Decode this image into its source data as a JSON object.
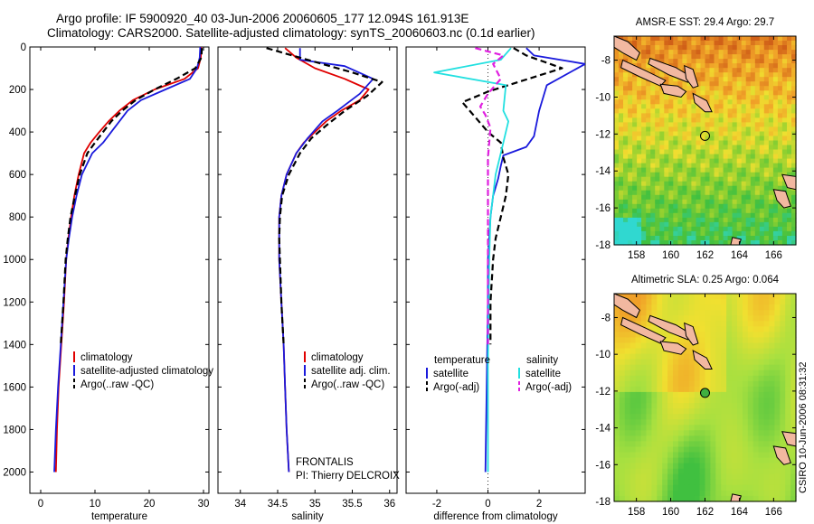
{
  "title": {
    "line1": "Argo profile: IF 5900920_40 03-Jun-2006 20060605_177 12.094S 161.913E",
    "line2": "Climatology: CARS2000. Satellite-adjusted climatology: synTS_20060603.nc (0.1d earlier)"
  },
  "side_text": "CSIRO 10-Jun-2006 08:31:32",
  "colors": {
    "red": "#e00000",
    "blue": "#1a1adc",
    "black": "#000000",
    "cyan": "#22e0e0",
    "magenta": "#e020e0"
  },
  "chart_data": [
    {
      "type": "line",
      "xlabel": "temperature",
      "ylabel": "",
      "xlim": [
        -2,
        31
      ],
      "ylim": [
        0,
        2100
      ],
      "y_reversed": true,
      "xticks": [
        0,
        10,
        20,
        30
      ],
      "yticks": [
        0,
        200,
        400,
        600,
        800,
        1000,
        1200,
        1400,
        1600,
        1800,
        2000
      ],
      "legend": [
        "climatology",
        "satellite-adjusted climatology",
        "Argo(..raw -QC)"
      ],
      "legend_position": "lower-left",
      "series": [
        {
          "name": "climatology",
          "color": "red",
          "dash": false,
          "points": [
            [
              29.6,
              0
            ],
            [
              29.5,
              50
            ],
            [
              29.0,
              100
            ],
            [
              26.5,
              150
            ],
            [
              21,
              200
            ],
            [
              17,
              250
            ],
            [
              14.5,
              300
            ],
            [
              12.5,
              350
            ],
            [
              10.8,
              400
            ],
            [
              9.2,
              450
            ],
            [
              8,
              500
            ],
            [
              7,
              600
            ],
            [
              6.2,
              700
            ],
            [
              5.6,
              800
            ],
            [
              5.1,
              900
            ],
            [
              4.7,
              1000
            ],
            [
              4.3,
              1200
            ],
            [
              3.8,
              1400
            ],
            [
              3.3,
              1600
            ],
            [
              3.0,
              1800
            ],
            [
              2.8,
              2000
            ]
          ]
        },
        {
          "name": "satellite-adjusted climatology",
          "color": "blue",
          "dash": false,
          "points": [
            [
              29.4,
              0
            ],
            [
              29.3,
              50
            ],
            [
              28.8,
              100
            ],
            [
              27.5,
              150
            ],
            [
              23,
              200
            ],
            [
              18.5,
              250
            ],
            [
              16,
              300
            ],
            [
              14.5,
              350
            ],
            [
              13,
              400
            ],
            [
              11.5,
              450
            ],
            [
              9.5,
              500
            ],
            [
              7.6,
              600
            ],
            [
              6.6,
              700
            ],
            [
              5.8,
              800
            ],
            [
              5.2,
              900
            ],
            [
              4.7,
              1000
            ],
            [
              4.2,
              1200
            ],
            [
              3.7,
              1400
            ],
            [
              3.2,
              1600
            ],
            [
              2.8,
              1800
            ],
            [
              2.5,
              2000
            ]
          ]
        },
        {
          "name": "Argo(..raw -QC)",
          "color": "black",
          "dash": true,
          "points": [
            [
              29.7,
              5
            ],
            [
              29.6,
              50
            ],
            [
              28.5,
              100
            ],
            [
              25,
              150
            ],
            [
              21,
              200
            ],
            [
              17.5,
              250
            ],
            [
              15,
              300
            ],
            [
              13,
              350
            ],
            [
              11.5,
              400
            ],
            [
              10,
              450
            ],
            [
              8.6,
              500
            ],
            [
              7.2,
              600
            ],
            [
              6.3,
              700
            ],
            [
              5.5,
              800
            ],
            [
              5,
              900
            ],
            [
              4.6,
              1000
            ],
            [
              4.2,
              1200
            ],
            [
              3.7,
              1400
            ]
          ]
        }
      ]
    },
    {
      "type": "line",
      "xlabel": "salinity",
      "ylabel": "",
      "xlim": [
        33.7,
        36.1
      ],
      "ylim": [
        0,
        2100
      ],
      "y_reversed": true,
      "xticks": [
        34,
        34.5,
        35,
        35.5,
        36
      ],
      "legend": [
        "climatology",
        "satellite adj. clim.",
        "Argo(..raw -QC)"
      ],
      "legend_position": "lower-left",
      "annotations": [
        "FRONTALIS",
        "PI: Thierry DELCROIX"
      ],
      "series": [
        {
          "name": "climatology",
          "color": "red",
          "dash": false,
          "points": [
            [
              34.6,
              5
            ],
            [
              34.75,
              50
            ],
            [
              35.0,
              100
            ],
            [
              35.4,
              150
            ],
            [
              35.72,
              200
            ],
            [
              35.6,
              250
            ],
            [
              35.35,
              300
            ],
            [
              35.15,
              350
            ],
            [
              35.0,
              400
            ],
            [
              34.85,
              450
            ],
            [
              34.75,
              500
            ],
            [
              34.62,
              600
            ],
            [
              34.55,
              700
            ],
            [
              34.52,
              800
            ],
            [
              34.52,
              1000
            ],
            [
              34.55,
              1200
            ],
            [
              34.58,
              1400
            ],
            [
              34.6,
              1600
            ],
            [
              34.62,
              1800
            ],
            [
              34.65,
              2000
            ]
          ]
        },
        {
          "name": "satellite adj. clim.",
          "color": "blue",
          "dash": false,
          "points": [
            [
              34.8,
              5
            ],
            [
              34.8,
              60
            ],
            [
              35.4,
              90
            ],
            [
              35.78,
              150
            ],
            [
              35.6,
              220
            ],
            [
              35.3,
              300
            ],
            [
              35.1,
              350
            ],
            [
              34.9,
              430
            ],
            [
              34.75,
              500
            ],
            [
              34.62,
              600
            ],
            [
              34.55,
              700
            ],
            [
              34.52,
              800
            ],
            [
              34.52,
              1000
            ],
            [
              34.55,
              1200
            ],
            [
              34.58,
              1400
            ],
            [
              34.6,
              1600
            ],
            [
              34.62,
              1800
            ],
            [
              34.65,
              2000
            ]
          ]
        },
        {
          "name": "Argo(..raw -QC)",
          "color": "black",
          "dash": true,
          "points": [
            [
              34.35,
              5
            ],
            [
              34.6,
              30
            ],
            [
              35.0,
              70
            ],
            [
              35.5,
              120
            ],
            [
              35.9,
              165
            ],
            [
              35.7,
              230
            ],
            [
              35.4,
              300
            ],
            [
              35.15,
              370
            ],
            [
              34.95,
              430
            ],
            [
              34.8,
              500
            ],
            [
              34.65,
              600
            ],
            [
              34.56,
              700
            ],
            [
              34.53,
              800
            ],
            [
              34.52,
              900
            ],
            [
              34.53,
              1000
            ],
            [
              34.55,
              1200
            ],
            [
              34.58,
              1400
            ]
          ]
        }
      ]
    },
    {
      "type": "line",
      "xlabel": "difference from climatology",
      "ylabel": "",
      "xlim": [
        -3.2,
        3.8
      ],
      "ylim": [
        0,
        2100
      ],
      "y_reversed": true,
      "xticks": [
        -2,
        0,
        2
      ],
      "legend_position": "lower-center",
      "legend_groups": [
        {
          "heading": "temperature",
          "items": [
            "satellite",
            "Argo(-adj)"
          ]
        },
        {
          "heading": "salinity",
          "items": [
            "satellite",
            "Argo(-adj)"
          ]
        }
      ],
      "series": [
        {
          "name": "satellite",
          "group": "temperature",
          "color": "blue",
          "dash": false,
          "points": [
            [
              1.5,
              5
            ],
            [
              1.8,
              40
            ],
            [
              3.8,
              80
            ],
            [
              2.3,
              180
            ],
            [
              2.0,
              300
            ],
            [
              1.8,
              420
            ],
            [
              1.5,
              470
            ],
            [
              0.6,
              510
            ],
            [
              0.5,
              560
            ],
            [
              0.4,
              620
            ],
            [
              0.2,
              700
            ],
            [
              0.1,
              800
            ],
            [
              0.05,
              900
            ],
            [
              0,
              1000
            ],
            [
              0,
              1200
            ],
            [
              -0.05,
              1600
            ],
            [
              -0.1,
              2000
            ]
          ]
        },
        {
          "name": "Argo(-adj)",
          "group": "temperature",
          "color": "black",
          "dash": true,
          "points": [
            [
              1.0,
              5
            ],
            [
              1.5,
              40
            ],
            [
              2.9,
              100
            ],
            [
              0,
              210
            ],
            [
              -1.0,
              260
            ],
            [
              -0.5,
              330
            ],
            [
              0,
              400
            ],
            [
              0.5,
              450
            ],
            [
              0.6,
              520
            ],
            [
              0.8,
              600
            ],
            [
              0.7,
              700
            ],
            [
              0.5,
              800
            ],
            [
              0.3,
              900
            ],
            [
              0.2,
              1000
            ],
            [
              0.1,
              1200
            ],
            [
              0.1,
              1400
            ]
          ]
        },
        {
          "name": "satellite",
          "group": "salinity",
          "color": "cyan",
          "dash": false,
          "points": [
            [
              0.9,
              5
            ],
            [
              0.5,
              60
            ],
            [
              -2.1,
              120
            ],
            [
              0.7,
              180
            ],
            [
              0.6,
              300
            ],
            [
              0.8,
              350
            ],
            [
              0.7,
              400
            ],
            [
              0.5,
              500
            ],
            [
              0.3,
              600
            ],
            [
              0.1,
              800
            ],
            [
              0.05,
              1000
            ],
            [
              0,
              1500
            ],
            [
              0,
              2000
            ]
          ]
        },
        {
          "name": "Argo(-adj)",
          "group": "salinity",
          "color": "magenta",
          "dash": true,
          "points": [
            [
              -0.5,
              5
            ],
            [
              0.6,
              40
            ],
            [
              0.2,
              80
            ],
            [
              0.5,
              150
            ],
            [
              0,
              220
            ],
            [
              -0.3,
              280
            ],
            [
              -0.1,
              320
            ],
            [
              0.1,
              380
            ],
            [
              0.05,
              450
            ],
            [
              0,
              520
            ],
            [
              0,
              600
            ],
            [
              0,
              800
            ],
            [
              0,
              1000
            ],
            [
              0,
              1200
            ],
            [
              0,
              1400
            ]
          ]
        }
      ]
    },
    {
      "type": "heatmap",
      "title": "AMSR-E SST: 29.4 Argo: 29.7",
      "xlim": [
        156.7,
        167.3
      ],
      "ylim": [
        -18,
        -6.7
      ],
      "xticks": [
        158,
        160,
        162,
        164,
        166
      ],
      "yticks": [
        -8,
        -10,
        -12,
        -14,
        -16,
        -18
      ],
      "marker": [
        162,
        -12.1
      ],
      "palette": [
        "#30d8d0",
        "#40c040",
        "#90d030",
        "#f0e030",
        "#f0a028",
        "#d06018"
      ]
    },
    {
      "type": "heatmap",
      "title": "Altimetric SLA: 0.25 Argo: 0.064",
      "xlim": [
        156.7,
        167.3
      ],
      "ylim": [
        -18,
        -6.7
      ],
      "xticks": [
        158,
        160,
        162,
        164,
        166
      ],
      "yticks": [
        -8,
        -10,
        -12,
        -14,
        -16,
        -18
      ],
      "marker": [
        162,
        -12.1
      ],
      "palette": [
        "#40c040",
        "#a8e040",
        "#f0e030",
        "#f0a028"
      ]
    }
  ]
}
